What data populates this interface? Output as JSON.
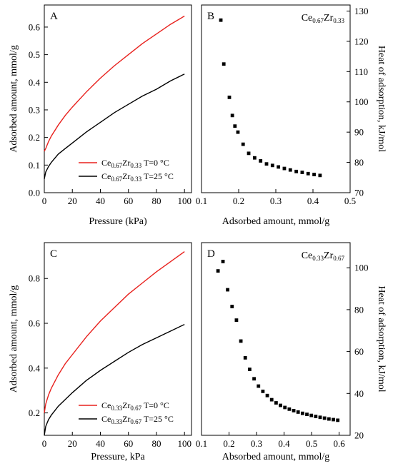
{
  "chart_data": [
    {
      "panel": "A",
      "type": "line",
      "xlabel": "Pressure (kPa)",
      "ylabel": "Adsorbed amount, mmol/g",
      "xlim": [
        0,
        105
      ],
      "ylim": [
        0,
        0.68
      ],
      "xticks": [
        "0",
        "20",
        "40",
        "60",
        "80",
        "100"
      ],
      "xtick_values": [
        0,
        20,
        40,
        60,
        80,
        100
      ],
      "yticks": [
        "0.0",
        "0.1",
        "0.2",
        "0.3",
        "0.4",
        "0.5",
        "0.6"
      ],
      "ytick_values": [
        0,
        0.1,
        0.2,
        0.3,
        0.4,
        0.5,
        0.6
      ],
      "legend_position": "bottom-right",
      "series": [
        {
          "name": "T=0 °C",
          "composition": {
            "el1": "Ce",
            "sub1": "0.67",
            "el2": "Zr",
            "sub2": "0.33"
          },
          "color": "#e8211d",
          "x": [
            0,
            1,
            3,
            5,
            10,
            15,
            20,
            30,
            40,
            50,
            60,
            70,
            80,
            90,
            100
          ],
          "y": [
            0.15,
            0.16,
            0.185,
            0.205,
            0.245,
            0.28,
            0.31,
            0.365,
            0.415,
            0.46,
            0.5,
            0.54,
            0.575,
            0.61,
            0.64
          ]
        },
        {
          "name": "T=25 °C",
          "composition": {
            "el1": "Ce",
            "sub1": "0.67",
            "el2": "Zr",
            "sub2": "0.33"
          },
          "color": "#000000",
          "x": [
            0,
            1,
            3,
            5,
            10,
            15,
            20,
            30,
            40,
            50,
            60,
            70,
            80,
            90,
            100
          ],
          "y": [
            0.05,
            0.075,
            0.095,
            0.11,
            0.14,
            0.16,
            0.18,
            0.22,
            0.255,
            0.29,
            0.32,
            0.35,
            0.375,
            0.405,
            0.43
          ]
        }
      ]
    },
    {
      "panel": "B",
      "type": "scatter",
      "composition": {
        "el1": "Ce",
        "sub1": "0.67",
        "el2": "Zr",
        "sub2": "0.33"
      },
      "xlabel": "Adsorbed amount, mmol/g",
      "ylabel": "Heat of adsorption, kJ/mol",
      "xlim": [
        0.1,
        0.5
      ],
      "ylim": [
        70,
        132
      ],
      "xticks": [
        "0.1",
        "0.2",
        "0.3",
        "0.4",
        "0.5"
      ],
      "xtick_values": [
        0.1,
        0.2,
        0.3,
        0.4,
        0.5
      ],
      "yticks": [
        "70",
        "80",
        "90",
        "100",
        "110",
        "120",
        "130"
      ],
      "ytick_values": [
        70,
        80,
        90,
        100,
        110,
        120,
        130
      ],
      "series": [
        {
          "color": "#000000",
          "x": [
            0.152,
            0.16,
            0.175,
            0.183,
            0.19,
            0.198,
            0.212,
            0.227,
            0.243,
            0.259,
            0.275,
            0.291,
            0.307,
            0.323,
            0.339,
            0.355,
            0.371,
            0.387,
            0.403,
            0.419
          ],
          "y": [
            127,
            112.5,
            101.5,
            95.5,
            92,
            90,
            86,
            83,
            81.5,
            80.5,
            79.5,
            79,
            78.5,
            78,
            77.5,
            77,
            76.7,
            76.3,
            76,
            75.7
          ]
        }
      ]
    },
    {
      "panel": "C",
      "type": "line",
      "xlabel": "Pressure, kPa",
      "ylabel": "Adsorbed amount, mmol/g",
      "xlim": [
        0,
        105
      ],
      "ylim": [
        0.1,
        0.96
      ],
      "xticks": [
        "0",
        "20",
        "40",
        "60",
        "80",
        "100"
      ],
      "xtick_values": [
        0,
        20,
        40,
        60,
        80,
        100
      ],
      "yticks": [
        "0.2",
        "0.4",
        "0.6",
        "0.8"
      ],
      "ytick_values": [
        0.2,
        0.4,
        0.6,
        0.8
      ],
      "legend_position": "bottom-right",
      "series": [
        {
          "name": "T=0 °C",
          "composition": {
            "el1": "Ce",
            "sub1": "0.33",
            "el2": "Zr",
            "sub2": "0.67"
          },
          "color": "#e8211d",
          "x": [
            0,
            1,
            3,
            5,
            10,
            15,
            20,
            30,
            40,
            50,
            60,
            70,
            80,
            90,
            100
          ],
          "y": [
            0.2,
            0.24,
            0.28,
            0.31,
            0.37,
            0.42,
            0.46,
            0.54,
            0.61,
            0.67,
            0.73,
            0.78,
            0.83,
            0.875,
            0.92
          ]
        },
        {
          "name": "T=25 °C",
          "composition": {
            "el1": "Ce",
            "sub1": "0.33",
            "el2": "Zr",
            "sub2": "0.67"
          },
          "color": "#000000",
          "x": [
            0,
            1,
            3,
            5,
            10,
            15,
            20,
            30,
            40,
            50,
            60,
            70,
            80,
            90,
            100
          ],
          "y": [
            0.1,
            0.14,
            0.17,
            0.19,
            0.23,
            0.26,
            0.29,
            0.345,
            0.39,
            0.43,
            0.47,
            0.505,
            0.535,
            0.565,
            0.595
          ]
        }
      ]
    },
    {
      "panel": "D",
      "type": "scatter",
      "composition": {
        "el1": "Ce",
        "sub1": "0.33",
        "el2": "Zr",
        "sub2": "0.67"
      },
      "xlabel": "Absorbed amount, mmol/g",
      "ylabel": "Heat of adsorption, kJ/mol",
      "xlim": [
        0.1,
        0.64
      ],
      "ylim": [
        20,
        112
      ],
      "xticks": [
        "0.1",
        "0.2",
        "0.3",
        "0.4",
        "0.5",
        "0.6"
      ],
      "xtick_values": [
        0.1,
        0.2,
        0.3,
        0.4,
        0.5,
        0.6
      ],
      "yticks": [
        "20",
        "40",
        "60",
        "80",
        "100"
      ],
      "ytick_values": [
        20,
        40,
        60,
        80,
        100
      ],
      "series": [
        {
          "color": "#000000",
          "x": [
            0.16,
            0.178,
            0.195,
            0.211,
            0.227,
            0.243,
            0.259,
            0.275,
            0.291,
            0.307,
            0.323,
            0.339,
            0.355,
            0.371,
            0.387,
            0.403,
            0.419,
            0.435,
            0.451,
            0.467,
            0.483,
            0.499,
            0.515,
            0.531,
            0.547,
            0.563,
            0.579,
            0.595
          ],
          "y": [
            98.5,
            103,
            89.5,
            81.5,
            75,
            65,
            57,
            51.5,
            47,
            43.5,
            41,
            39,
            37,
            35.5,
            34.3,
            33.3,
            32.5,
            31.8,
            31.1,
            30.5,
            30,
            29.5,
            29,
            28.6,
            28.2,
            27.8,
            27.5,
            27.2
          ]
        }
      ]
    }
  ]
}
